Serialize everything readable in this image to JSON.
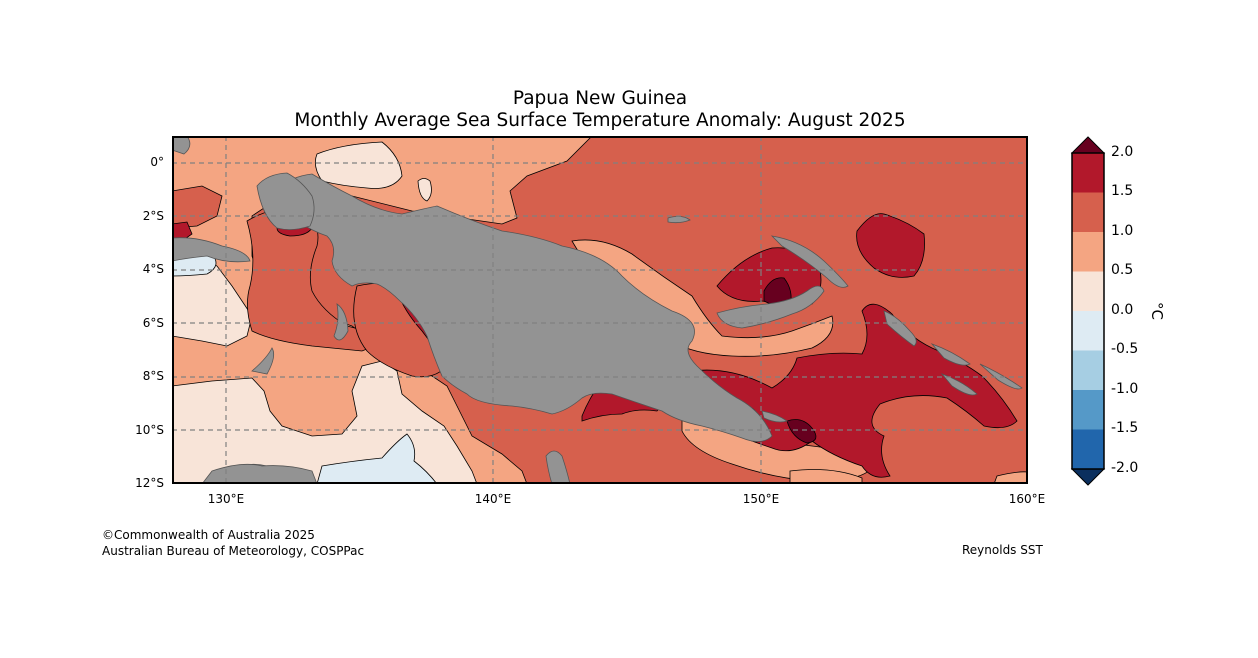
{
  "title": {
    "line1": "Papua New Guinea",
    "line2": "Monthly Average Sea Surface Temperature Anomaly: August 2025"
  },
  "axes": {
    "lat_labels": [
      "0°",
      "2°S",
      "4°S",
      "6°S",
      "8°S",
      "10°S",
      "12°S"
    ],
    "lon_labels": [
      "130°E",
      "140°E",
      "150°E",
      "160°E"
    ],
    "lon_range": [
      128,
      160
    ],
    "lat_range": [
      -12,
      1
    ]
  },
  "colorbar": {
    "unit": "°C",
    "ticks": [
      "2.0",
      "1.5",
      "1.0",
      "0.5",
      "0.0",
      "-0.5",
      "-1.0",
      "-1.5",
      "-2.0"
    ],
    "colors": {
      "over_2": "#67001f",
      "c_1_5_2": "#b2182b",
      "c_1_1_5": "#d6604d",
      "c_0_5_1": "#f4a582",
      "c_0_0_5": "#f8e4d8",
      "c_m0_5_0": "#deebf3",
      "c_m1_m0_5": "#a6cee3",
      "c_m1_5_m1": "#5599c8",
      "c_m2_m1_5": "#2166ac",
      "under_m2": "#0b2f5e",
      "land": "#939393"
    }
  },
  "credits": {
    "copyright": "©Commonwealth of Australia 2025",
    "agency": "Australian Bureau of Meteorology, COSPPac",
    "source": "Reynolds SST"
  }
}
